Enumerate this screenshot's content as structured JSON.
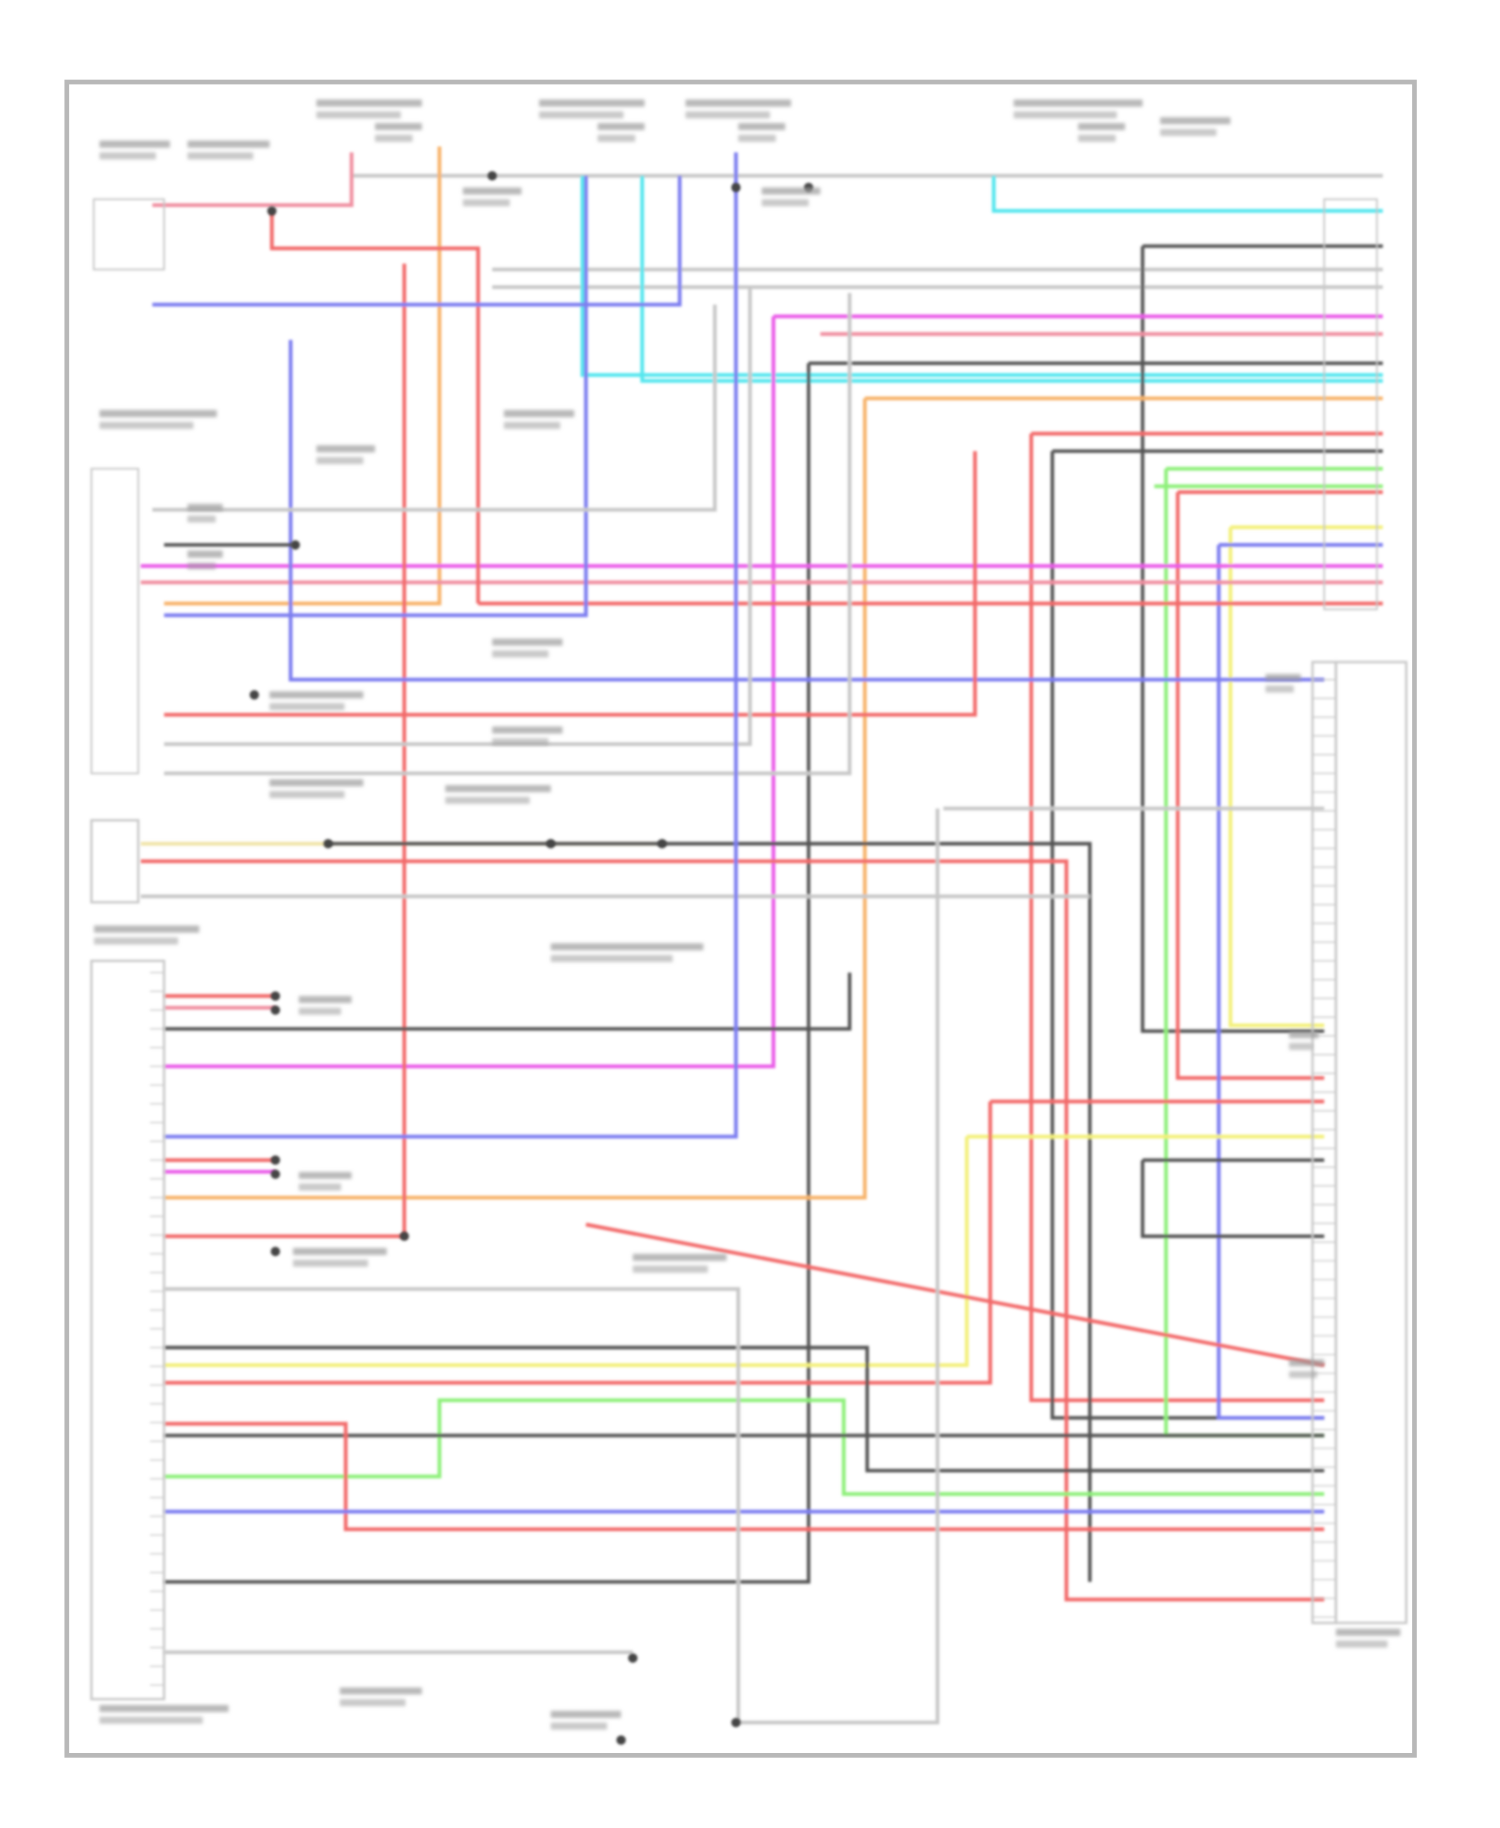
{
  "diagram": {
    "labels_legible": false,
    "wire_colors": {
      "red": "#f26a6a",
      "pink": "#f08fa0",
      "magenta": "#ea5ce8",
      "cyan": "#55e6ee",
      "orange": "#f7b36a",
      "yellow": "#f3f07a",
      "pale_yellow": "#f0e4a8",
      "green": "#8ef07a",
      "blue": "#7d7ef0",
      "dark": "#555555",
      "gray": "#c8c8c8",
      "frame": "#b8b8b8"
    }
  }
}
